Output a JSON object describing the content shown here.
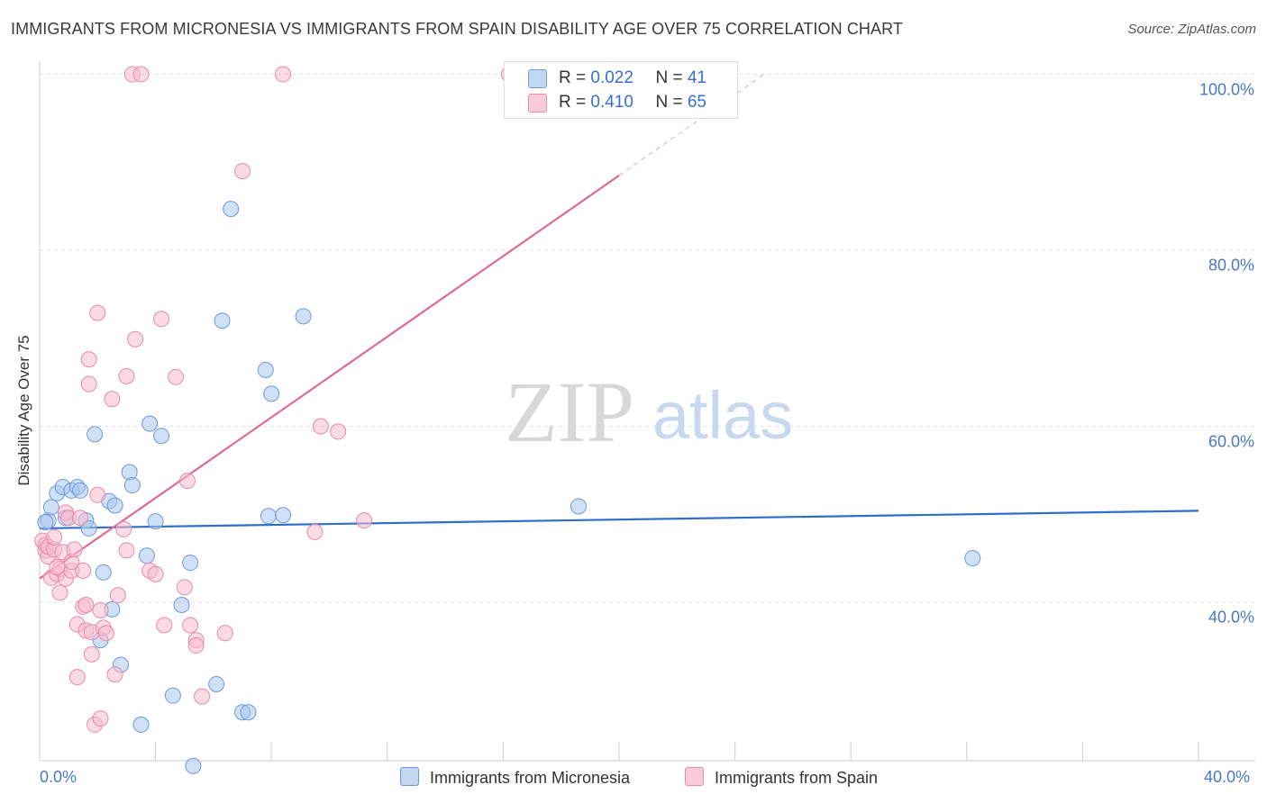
{
  "chart_data": {
    "type": "scatter",
    "title": "IMMIGRANTS FROM MICRONESIA VS IMMIGRANTS FROM SPAIN DISABILITY AGE OVER 75 CORRELATION CHART",
    "source": "Source: ZipAtlas.com",
    "xlabel": "",
    "ylabel": "Disability Age Over 75",
    "xlim": [
      0,
      40
    ],
    "ylim": [
      22,
      102
    ],
    "x_tick_labels": [
      "0.0%",
      "40.0%"
    ],
    "y_ticks": [
      40,
      60,
      80,
      100
    ],
    "y_tick_labels": [
      "40.0%",
      "60.0%",
      "80.0%",
      "100.0%"
    ],
    "watermark": {
      "zip": "ZIP",
      "atlas": "atlas"
    },
    "legend": {
      "rows": [
        {
          "r_label": "R = ",
          "r_value": "0.022",
          "n_label": "N = ",
          "n_value": "41"
        },
        {
          "r_label": "R = ",
          "r_value": "0.410",
          "n_label": "N = ",
          "n_value": "65"
        }
      ]
    },
    "series": [
      {
        "name": "Immigrants from Micronesia",
        "color": "#a9c6ee",
        "stroke": "#6f9ad8",
        "line_color": "#2f6fcc",
        "trend": {
          "x": [
            0,
            40
          ],
          "y": [
            48.4,
            50.4
          ],
          "dashed_to": null
        },
        "points": [
          [
            0.3,
            49.3
          ],
          [
            0.4,
            50.8
          ],
          [
            0.6,
            52.4
          ],
          [
            0.8,
            53.1
          ],
          [
            0.9,
            49.6
          ],
          [
            1.1,
            52.7
          ],
          [
            1.3,
            53.1
          ],
          [
            1.4,
            52.7
          ],
          [
            1.6,
            49.3
          ],
          [
            1.7,
            48.4
          ],
          [
            1.9,
            59.1
          ],
          [
            2.1,
            35.7
          ],
          [
            2.2,
            43.4
          ],
          [
            2.4,
            51.5
          ],
          [
            2.5,
            39.2
          ],
          [
            2.6,
            51.0
          ],
          [
            2.8,
            32.9
          ],
          [
            3.1,
            54.8
          ],
          [
            3.2,
            53.3
          ],
          [
            3.5,
            26.1
          ],
          [
            3.7,
            45.3
          ],
          [
            3.8,
            60.3
          ],
          [
            4.0,
            49.2
          ],
          [
            4.2,
            58.9
          ],
          [
            4.6,
            29.4
          ],
          [
            4.9,
            39.7
          ],
          [
            5.2,
            44.5
          ],
          [
            5.3,
            21.4
          ],
          [
            6.1,
            30.7
          ],
          [
            6.3,
            72.0
          ],
          [
            6.6,
            84.7
          ],
          [
            7.0,
            27.5
          ],
          [
            7.2,
            27.5
          ],
          [
            7.8,
            66.4
          ],
          [
            7.9,
            49.8
          ],
          [
            8.0,
            63.7
          ],
          [
            8.4,
            49.9
          ],
          [
            9.1,
            72.5
          ],
          [
            18.6,
            50.9
          ],
          [
            32.2,
            45.0
          ],
          [
            0.2,
            49.1
          ]
        ]
      },
      {
        "name": "Immigrants from Spain",
        "color": "#f6bccf",
        "stroke": "#e88aa8",
        "line_color": "#e06a92",
        "trend": {
          "x": [
            0,
            20.0
          ],
          "y": [
            42.7,
            88.5
          ],
          "dashed_to": [
            25.0,
            100.0
          ]
        },
        "points": [
          [
            0.1,
            47.0
          ],
          [
            0.2,
            46.5
          ],
          [
            0.2,
            45.9
          ],
          [
            0.3,
            45.2
          ],
          [
            0.3,
            46.3
          ],
          [
            0.4,
            42.8
          ],
          [
            0.5,
            46.0
          ],
          [
            0.5,
            47.4
          ],
          [
            0.6,
            43.2
          ],
          [
            0.7,
            43.8
          ],
          [
            0.7,
            41.1
          ],
          [
            0.8,
            45.7
          ],
          [
            0.9,
            42.7
          ],
          [
            0.9,
            50.2
          ],
          [
            1.0,
            49.6
          ],
          [
            1.1,
            43.6
          ],
          [
            1.1,
            44.6
          ],
          [
            1.2,
            46.0
          ],
          [
            1.3,
            31.5
          ],
          [
            1.3,
            37.5
          ],
          [
            1.4,
            49.6
          ],
          [
            1.5,
            43.6
          ],
          [
            1.5,
            39.5
          ],
          [
            1.6,
            36.8
          ],
          [
            1.6,
            39.7
          ],
          [
            1.7,
            67.6
          ],
          [
            1.7,
            64.8
          ],
          [
            1.8,
            34.1
          ],
          [
            1.8,
            36.6
          ],
          [
            1.9,
            26.1
          ],
          [
            2.0,
            72.9
          ],
          [
            2.0,
            52.2
          ],
          [
            2.1,
            39.1
          ],
          [
            2.1,
            26.8
          ],
          [
            2.2,
            37.1
          ],
          [
            2.3,
            36.5
          ],
          [
            2.5,
            63.1
          ],
          [
            2.6,
            31.8
          ],
          [
            2.7,
            40.8
          ],
          [
            2.9,
            48.3
          ],
          [
            3.0,
            45.9
          ],
          [
            3.0,
            65.7
          ],
          [
            3.2,
            100.0
          ],
          [
            3.3,
            69.9
          ],
          [
            3.5,
            100.0
          ],
          [
            3.8,
            43.6
          ],
          [
            4.0,
            43.2
          ],
          [
            4.2,
            72.2
          ],
          [
            4.3,
            37.4
          ],
          [
            4.7,
            65.6
          ],
          [
            5.0,
            41.7
          ],
          [
            5.1,
            53.8
          ],
          [
            5.2,
            37.4
          ],
          [
            5.4,
            35.7
          ],
          [
            5.4,
            35.1
          ],
          [
            5.6,
            29.3
          ],
          [
            6.4,
            36.5
          ],
          [
            7.0,
            89.0
          ],
          [
            8.4,
            100.0
          ],
          [
            9.5,
            48.0
          ],
          [
            9.7,
            60.0
          ],
          [
            10.3,
            59.4
          ],
          [
            11.2,
            49.3
          ],
          [
            16.2,
            100.0
          ],
          [
            0.6,
            44.0
          ]
        ]
      }
    ]
  }
}
